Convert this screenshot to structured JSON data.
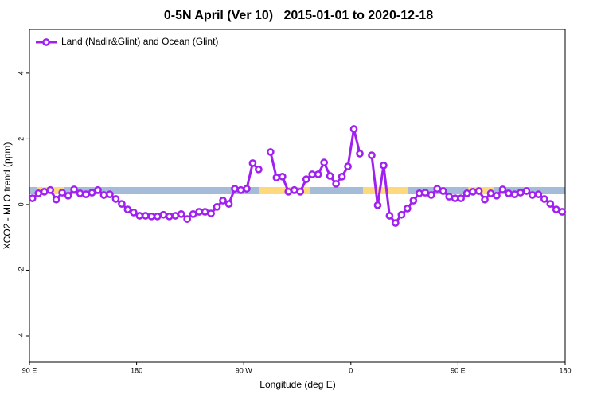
{
  "chart_data": {
    "type": "line",
    "title": "0-5N April (Ver 10)   2015-01-01 to 2020-12-18",
    "x_label": "Longitude (deg E)",
    "y_label": "XCO2 - MLO trend (ppm)",
    "xlim": [
      -270,
      180
    ],
    "xticks": [
      {
        "value": -270,
        "label": "90 E"
      },
      {
        "value": -180,
        "label": "180"
      },
      {
        "value": -90,
        "label": "90 W"
      },
      0,
      {
        "value": 90,
        "label": "90 E"
      },
      180
    ],
    "ylim": [
      -4.8,
      5.33
    ],
    "yticks": [
      -4,
      -2,
      0,
      2,
      4
    ],
    "legend": "top-left",
    "x": [
      -267.5,
      -262.5,
      -257.5,
      -252.5,
      -247.5,
      -242.5,
      -237.5,
      -232.5,
      -227.5,
      -222.5,
      -217.5,
      -212.5,
      -207.5,
      -202.5,
      -197.5,
      -192.5,
      -187.5,
      -182.5,
      -177.5,
      -172.5,
      -167.5,
      -162.5,
      -157.5,
      -152.5,
      -147.5,
      -142.5,
      -137.5,
      -132.5,
      -127.5,
      -122.5,
      -117.5,
      -112.5,
      -107.5,
      -102.5,
      -97.5,
      -92.5,
      -87.5,
      -82.5,
      -77.5,
      -72.5,
      -67.5,
      -62.5,
      -57.5,
      -52.5,
      -47.5,
      -42.5,
      -37.5,
      -32.5,
      -27.5,
      -22.5,
      -17.5,
      -12.5,
      -7.5,
      -2.5,
      2.5,
      7.5,
      12.5,
      17.5,
      22.5,
      27.5,
      32.5,
      37.5,
      42.5,
      47.5,
      52.5,
      57.5,
      62.5,
      67.5,
      72.5,
      77.5,
      82.5,
      87.5,
      92.5,
      97.5,
      102.5,
      107.5,
      112.5,
      117.5,
      122.5,
      127.5,
      132.5,
      137.5,
      142.5,
      147.5,
      152.5,
      157.5,
      162.5,
      167.5,
      172.5,
      177.5
    ],
    "series": [
      {
        "name": "Land (Nadir&Glint) and Ocean (Glint)",
        "color": "#a020f0",
        "values": [
          0.19,
          0.34,
          0.39,
          0.44,
          0.15,
          0.36,
          0.27,
          0.46,
          0.34,
          0.31,
          0.36,
          0.44,
          0.29,
          0.31,
          0.17,
          0.02,
          -0.15,
          -0.24,
          -0.34,
          -0.34,
          -0.36,
          -0.36,
          -0.31,
          -0.36,
          -0.34,
          -0.29,
          -0.44,
          -0.29,
          -0.22,
          -0.22,
          -0.27,
          -0.07,
          0.12,
          0.02,
          0.48,
          0.44,
          0.48,
          1.26,
          1.07,
          null,
          1.6,
          0.82,
          0.85,
          0.39,
          0.44,
          0.39,
          0.77,
          0.92,
          0.92,
          1.28,
          0.87,
          0.63,
          0.85,
          1.16,
          2.3,
          1.55,
          null,
          1.5,
          -0.02,
          1.19,
          -0.34,
          -0.56,
          -0.31,
          -0.12,
          0.12,
          0.34,
          0.36,
          0.29,
          0.48,
          0.41,
          0.24,
          0.19,
          0.19,
          0.34,
          0.39,
          0.41,
          0.15,
          0.34,
          0.27,
          0.46,
          0.34,
          0.31,
          0.36,
          0.41,
          0.29,
          0.31,
          0.17,
          0.02,
          -0.15,
          -0.22
        ]
      }
    ]
  }
}
